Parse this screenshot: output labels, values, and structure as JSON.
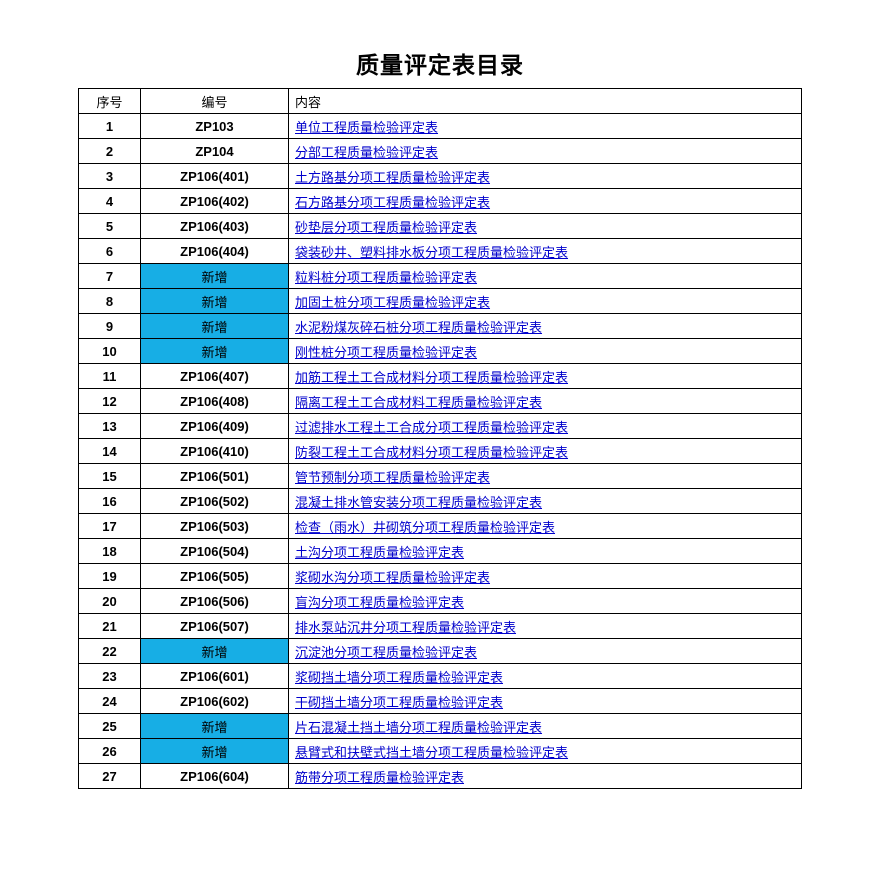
{
  "title": "质量评定表目录",
  "columns": {
    "idx": "序号",
    "code": "编号",
    "desc": "内容"
  },
  "new_label": "新增",
  "highlight_color": "#17aee5",
  "link_color": "#0000cc",
  "rows": [
    {
      "n": 1,
      "code": "ZP103",
      "new": false,
      "desc": "单位工程质量检验评定表"
    },
    {
      "n": 2,
      "code": "ZP104",
      "new": false,
      "desc": "分部工程质量检验评定表"
    },
    {
      "n": 3,
      "code": "ZP106(401)",
      "new": false,
      "desc": "土方路基分项工程质量检验评定表"
    },
    {
      "n": 4,
      "code": "ZP106(402)",
      "new": false,
      "desc": "石方路基分项工程质量检验评定表"
    },
    {
      "n": 5,
      "code": "ZP106(403)",
      "new": false,
      "desc": "砂垫层分项工程质量检验评定表"
    },
    {
      "n": 6,
      "code": "ZP106(404)",
      "new": false,
      "desc": "袋装砂井、塑料排水板分项工程质量检验评定表"
    },
    {
      "n": 7,
      "code": "",
      "new": true,
      "desc": "粒料桩分项工程质量检验评定表"
    },
    {
      "n": 8,
      "code": "",
      "new": true,
      "desc": "加固土桩分项工程质量检验评定表"
    },
    {
      "n": 9,
      "code": "",
      "new": true,
      "desc": "水泥粉煤灰碎石桩分项工程质量检验评定表"
    },
    {
      "n": 10,
      "code": "",
      "new": true,
      "desc": "刚性桩分项工程质量检验评定表"
    },
    {
      "n": 11,
      "code": "ZP106(407)",
      "new": false,
      "desc": "加筋工程土工合成材料分项工程质量检验评定表"
    },
    {
      "n": 12,
      "code": "ZP106(408)",
      "new": false,
      "desc": "隔离工程土工合成材料工程质量检验评定表"
    },
    {
      "n": 13,
      "code": "ZP106(409)",
      "new": false,
      "desc": "过滤排水工程土工合成分项工程质量检验评定表"
    },
    {
      "n": 14,
      "code": "ZP106(410)",
      "new": false,
      "desc": "防裂工程土工合成材料分项工程质量检验评定表"
    },
    {
      "n": 15,
      "code": "ZP106(501)",
      "new": false,
      "desc": "管节预制分项工程质量检验评定表"
    },
    {
      "n": 16,
      "code": "ZP106(502)",
      "new": false,
      "desc": "混凝土排水管安装分项工程质量检验评定表"
    },
    {
      "n": 17,
      "code": "ZP106(503)",
      "new": false,
      "desc": "检查（雨水）井砌筑分项工程质量检验评定表"
    },
    {
      "n": 18,
      "code": "ZP106(504)",
      "new": false,
      "desc": "土沟分项工程质量检验评定表"
    },
    {
      "n": 19,
      "code": "ZP106(505)",
      "new": false,
      "desc": "浆砌水沟分项工程质量检验评定表"
    },
    {
      "n": 20,
      "code": "ZP106(506)",
      "new": false,
      "desc": "盲沟分项工程质量检验评定表"
    },
    {
      "n": 21,
      "code": "ZP106(507)",
      "new": false,
      "desc": "排水泵站沉井分项工程质量检验评定表"
    },
    {
      "n": 22,
      "code": "",
      "new": true,
      "desc": "沉淀池分项工程质量检验评定表"
    },
    {
      "n": 23,
      "code": "ZP106(601)",
      "new": false,
      "desc": "浆砌挡土墙分项工程质量检验评定表"
    },
    {
      "n": 24,
      "code": "ZP106(602)",
      "new": false,
      "desc": "干砌挡土墙分项工程质量检验评定表"
    },
    {
      "n": 25,
      "code": "",
      "new": true,
      "desc": "片石混凝土挡土墙分项工程质量检验评定表"
    },
    {
      "n": 26,
      "code": "",
      "new": true,
      "desc": "悬臂式和扶壁式挡土墙分项工程质量检验评定表"
    },
    {
      "n": 27,
      "code": "ZP106(604)",
      "new": false,
      "desc": "筋带分项工程质量检验评定表"
    }
  ]
}
